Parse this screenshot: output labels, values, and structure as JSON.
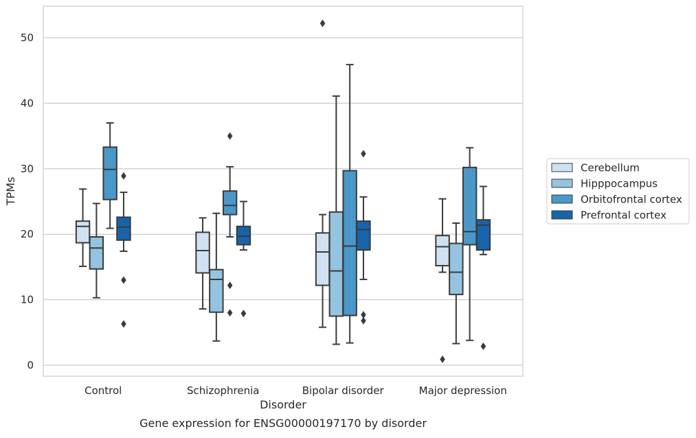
{
  "chart_data": {
    "type": "boxplot",
    "title": "",
    "caption": "Gene expression for ENSG00000197170 by disorder",
    "xlabel": "Disorder",
    "ylabel": "TPMs",
    "ylim": [
      -1.6,
      54.8
    ],
    "yticks": [
      0,
      10,
      20,
      30,
      40,
      50
    ],
    "grid": "horizontal",
    "legend_position": "right",
    "categories": [
      "Control",
      "Schizophrenia",
      "Bipolar disorder",
      "Major depression"
    ],
    "series": [
      {
        "name": "Cerebellum",
        "color": "#d0e1f2",
        "boxes": [
          {
            "whisker_low": 15.1,
            "q1": 18.7,
            "median": 21.2,
            "q3": 22.0,
            "whisker_high": 26.9,
            "outliers": []
          },
          {
            "whisker_low": 8.6,
            "q1": 14.1,
            "median": 17.5,
            "q3": 20.3,
            "whisker_high": 22.5,
            "outliers": []
          },
          {
            "whisker_low": 5.8,
            "q1": 12.2,
            "median": 17.3,
            "q3": 20.2,
            "whisker_high": 23.0,
            "outliers": [
              52.2
            ]
          },
          {
            "whisker_low": 14.2,
            "q1": 15.2,
            "median": 18.1,
            "q3": 19.8,
            "whisker_high": 25.4,
            "outliers": [
              0.9
            ]
          }
        ]
      },
      {
        "name": "Hipppocampus",
        "color": "#94c4df",
        "boxes": [
          {
            "whisker_low": 10.3,
            "q1": 14.7,
            "median": 17.9,
            "q3": 19.6,
            "whisker_high": 24.7,
            "outliers": []
          },
          {
            "whisker_low": 3.7,
            "q1": 8.1,
            "median": 13.1,
            "q3": 14.6,
            "whisker_high": 23.2,
            "outliers": []
          },
          {
            "whisker_low": 3.2,
            "q1": 7.5,
            "median": 14.4,
            "q3": 23.4,
            "whisker_high": 41.1,
            "outliers": []
          },
          {
            "whisker_low": 3.3,
            "q1": 10.8,
            "median": 14.2,
            "q3": 18.6,
            "whisker_high": 21.7,
            "outliers": []
          }
        ]
      },
      {
        "name": "Orbitofrontal cortex",
        "color": "#4a98c9",
        "boxes": [
          {
            "whisker_low": 20.9,
            "q1": 25.3,
            "median": 29.9,
            "q3": 33.3,
            "whisker_high": 37.0,
            "outliers": []
          },
          {
            "whisker_low": 19.6,
            "q1": 23.0,
            "median": 24.4,
            "q3": 26.6,
            "whisker_high": 30.3,
            "outliers": [
              35.0,
              12.2,
              8.0
            ]
          },
          {
            "whisker_low": 3.4,
            "q1": 7.6,
            "median": 18.2,
            "q3": 29.7,
            "whisker_high": 45.9,
            "outliers": []
          },
          {
            "whisker_low": 3.8,
            "q1": 18.4,
            "median": 20.4,
            "q3": 30.2,
            "whisker_high": 33.2,
            "outliers": []
          }
        ]
      },
      {
        "name": "Prefrontal cortex",
        "color": "#1764ab",
        "boxes": [
          {
            "whisker_low": 17.4,
            "q1": 19.1,
            "median": 21.1,
            "q3": 22.6,
            "whisker_high": 26.4,
            "outliers": [
              28.9,
              13.0,
              6.3
            ]
          },
          {
            "whisker_low": 17.6,
            "q1": 18.4,
            "median": 19.7,
            "q3": 21.2,
            "whisker_high": 25.0,
            "outliers": [
              7.9
            ]
          },
          {
            "whisker_low": 13.1,
            "q1": 17.6,
            "median": 20.7,
            "q3": 22.0,
            "whisker_high": 25.7,
            "outliers": [
              32.3,
              7.7,
              6.8
            ]
          },
          {
            "whisker_low": 16.9,
            "q1": 17.6,
            "median": 21.4,
            "q3": 22.2,
            "whisker_high": 27.3,
            "outliers": [
              2.9
            ]
          }
        ]
      }
    ]
  }
}
